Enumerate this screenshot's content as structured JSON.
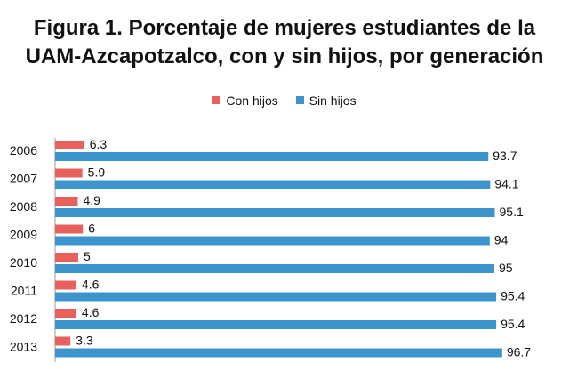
{
  "title_line1": "Figura 1. Porcentaje de mujeres estudiantes de la",
  "title_line2": "UAM-Azcapotzalco, con y sin hijos, por generación",
  "colors": {
    "con_hijos": "#e8615d",
    "sin_hijos": "#3d94cc"
  },
  "chart_data": {
    "type": "bar",
    "orientation": "horizontal",
    "categories": [
      "2006",
      "2007",
      "2008",
      "2009",
      "2010",
      "2011",
      "2012",
      "2013"
    ],
    "series": [
      {
        "name": "Con hijos",
        "values": [
          6.3,
          5.9,
          4.9,
          6,
          5,
          4.6,
          4.6,
          3.3
        ]
      },
      {
        "name": "Sin hijos",
        "values": [
          93.7,
          94.1,
          95.1,
          94,
          95,
          95.4,
          95.4,
          96.7
        ]
      }
    ],
    "value_labels": [
      [
        "6.3",
        "5.9",
        "4.9",
        "6",
        "5",
        "4.6",
        "4.6",
        "3.3"
      ],
      [
        "93.7",
        "94.1",
        "95.1",
        "94",
        "95",
        "95.4",
        "95.4",
        "96.7"
      ]
    ],
    "legend_position": "top",
    "grid": false
  }
}
